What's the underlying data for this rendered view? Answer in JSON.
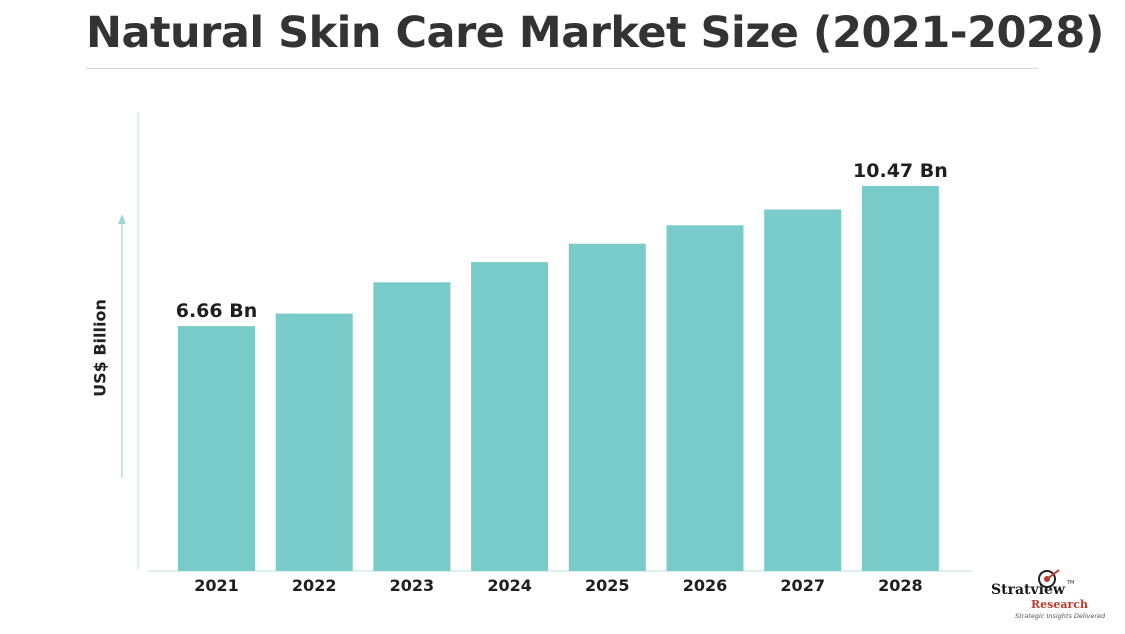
{
  "title": "Natural Skin Care Market Size (2021-2028)",
  "colors": {
    "bar": "#79cbc9",
    "axis": "#9fd9d7",
    "title": "#333333"
  },
  "chart_data": {
    "type": "bar",
    "title": "Natural Skin Care Market Size (2021-2028)",
    "xlabel": "",
    "ylabel": "US$ Billion",
    "categories": [
      "2021",
      "2022",
      "2023",
      "2024",
      "2025",
      "2026",
      "2027",
      "2028"
    ],
    "values": [
      6.66,
      7.0,
      7.85,
      8.4,
      8.9,
      9.4,
      9.83,
      10.47
    ],
    "data_labels": [
      {
        "category": "2021",
        "text": "6.66 Bn"
      },
      {
        "category": "2028",
        "text": "10.47 Bn"
      }
    ],
    "ylim": [
      0,
      10.47
    ],
    "grid": false,
    "legend": "none"
  },
  "logo": {
    "name": "Stratview",
    "tm": "TM",
    "sub": "Research",
    "tagline": "Strategic Insights Delivered"
  }
}
